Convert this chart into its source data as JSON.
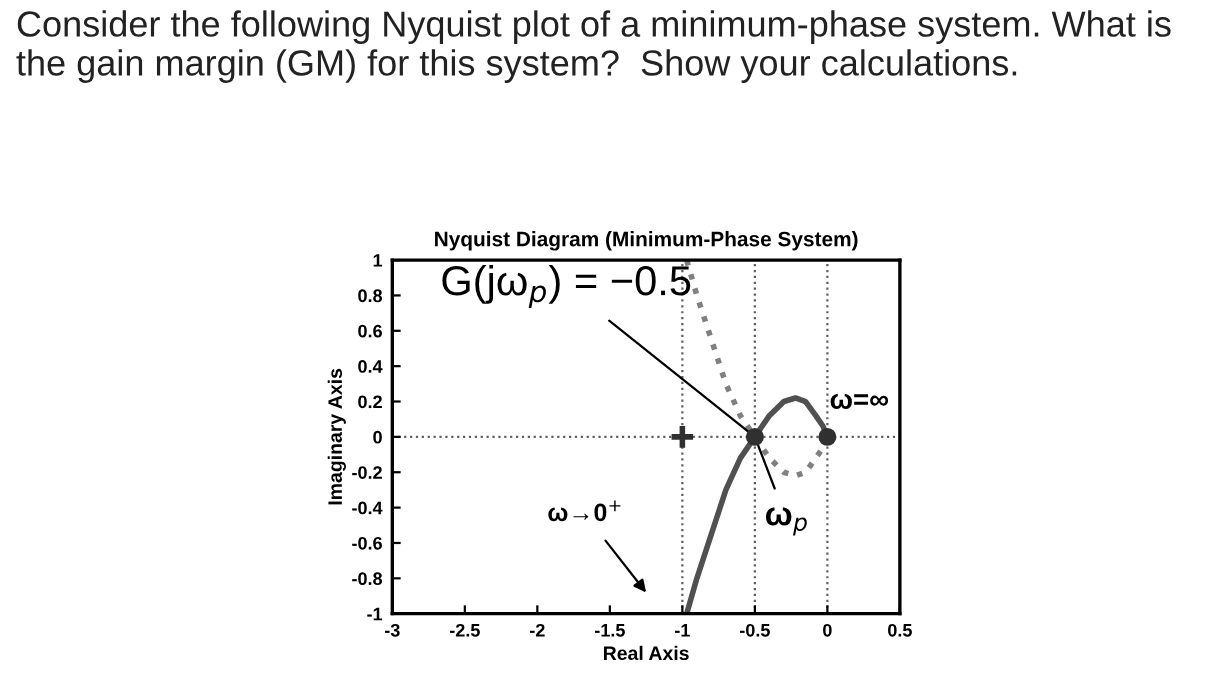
{
  "chart_data": {
    "type": "line",
    "title": "Nyquist Diagram (Minimum-Phase System)",
    "xlabel": "Real Axis",
    "ylabel": "Imaginary Axis",
    "xlim": [
      -3,
      0.5
    ],
    "xticks": [
      -3,
      -2.5,
      -2,
      -1.5,
      -1,
      -0.5,
      0,
      0.5
    ],
    "ylim": [
      -1,
      1
    ],
    "yticks": [
      -1,
      -0.8,
      -0.6,
      -0.4,
      -0.2,
      0,
      0.2,
      0.4,
      0.6,
      0.8,
      1
    ],
    "grid": false,
    "series": [
      {
        "color": "#505050",
        "line_style": "solid",
        "marker": "none",
        "x": [
          -0.97,
          -0.9,
          -0.8,
          -0.7,
          -0.6,
          -0.5,
          -0.4,
          -0.3,
          -0.22,
          -0.15,
          -0.08,
          -0.03,
          0
        ],
        "values": [
          -1,
          -0.8,
          -0.55,
          -0.3,
          -0.12,
          0,
          0.12,
          0.2,
          0.22,
          0.2,
          0.12,
          0.06,
          0
        ]
      },
      {
        "color": "#808080",
        "line_style": "dotted",
        "marker": "none",
        "x": [
          -0.97,
          -0.9,
          -0.8,
          -0.7,
          -0.6,
          -0.5,
          -0.4,
          -0.3,
          -0.22,
          -0.15,
          -0.08,
          -0.03,
          0
        ],
        "values": [
          1,
          0.8,
          0.55,
          0.3,
          0.12,
          0,
          -0.12,
          -0.2,
          -0.22,
          -0.2,
          -0.12,
          -0.06,
          0
        ]
      },
      {
        "type": "scatter",
        "color": "#303030",
        "marker": "circle",
        "x": [
          -0.5,
          0
        ],
        "values": [
          0,
          0
        ]
      },
      {
        "type": "scatter",
        "color": "#303030",
        "marker": "cross",
        "x": [
          -1
        ],
        "values": [
          0
        ]
      }
    ],
    "ref_lines": [
      {
        "axis": "x",
        "value": -1,
        "line_style": "dotted"
      },
      {
        "axis": "x",
        "value": -0.5,
        "line_style": "dotted"
      },
      {
        "axis": "x",
        "value": 0,
        "line_style": "dotted"
      },
      {
        "axis": "y",
        "value": 0,
        "line_style": "dotted"
      }
    ],
    "annotations": [
      "Consider the following Nyquist plot of a minimum-phase system. What is the gain margin (GM) for this system?  Show your calculations.",
      {
        "text": "G(jω$_{p}$) = −0.5",
        "x": -0.5,
        "y": 0
      },
      {
        "text": "ω$_{p}$",
        "x": -0.5,
        "y": 0
      },
      "ω=∞",
      "ω→0$^{+}$"
    ]
  }
}
